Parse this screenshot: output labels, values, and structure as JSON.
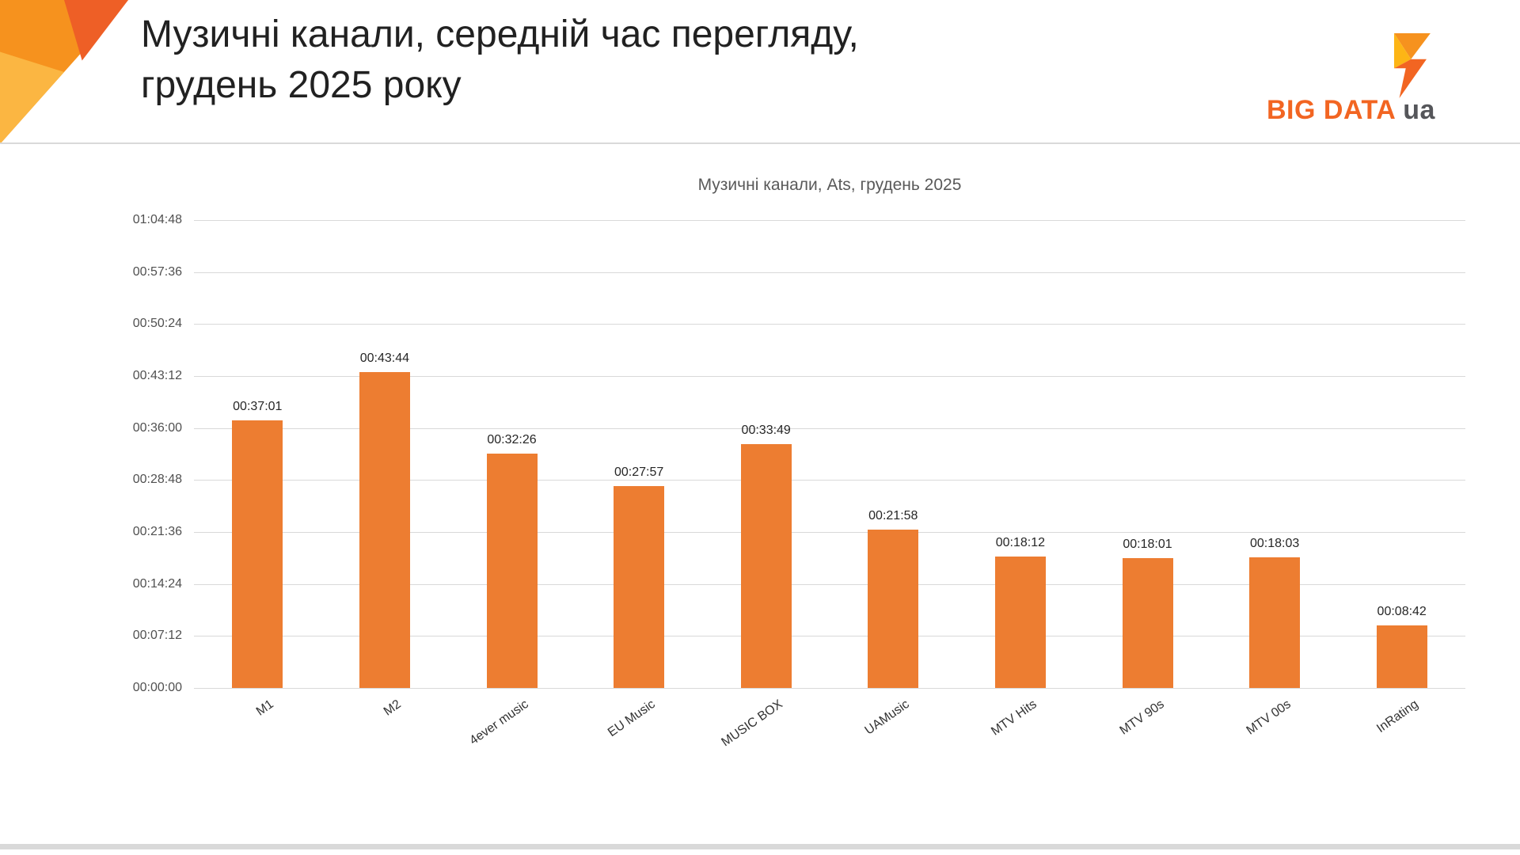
{
  "header": {
    "title_line1": "Музичні канали, середній час перегляду,",
    "title_line2": "грудень 2025 року",
    "logo": {
      "name": "BIG DATA",
      "suffix": "ua"
    }
  },
  "chart_data": {
    "type": "bar",
    "title": "Музичні канали, Ats, грудень 2025",
    "categories": [
      "M1",
      "M2",
      "4ever music",
      "EU Music",
      "MUSIC BOX",
      "UAMusic",
      "MTV Hits",
      "MTV 90s",
      "MTV 00s",
      "InRating"
    ],
    "values": [
      "00:37:01",
      "00:43:44",
      "00:32:26",
      "00:27:57",
      "00:33:49",
      "00:21:58",
      "00:18:12",
      "00:18:01",
      "00:18:03",
      "00:08:42"
    ],
    "values_seconds": [
      2221,
      2624,
      1946,
      1677,
      2029,
      1318,
      1092,
      1081,
      1083,
      522
    ],
    "y_ticks": [
      "00:00:00",
      "00:07:12",
      "00:14:24",
      "00:21:36",
      "00:28:48",
      "00:36:00",
      "00:43:12",
      "00:50:24",
      "00:57:36",
      "01:04:48"
    ],
    "ylim": [
      "00:00:00",
      "01:04:48"
    ],
    "bar_color": "#ED7D31",
    "grid": true,
    "legend": "none",
    "value_labels": true,
    "xlabel": "",
    "ylabel": ""
  },
  "colors": {
    "accent_orange": "#F6921E",
    "logo_orange": "#F26522",
    "divider": "#D9D9D9",
    "title_text": "#212121",
    "axis_text": "#595959"
  }
}
